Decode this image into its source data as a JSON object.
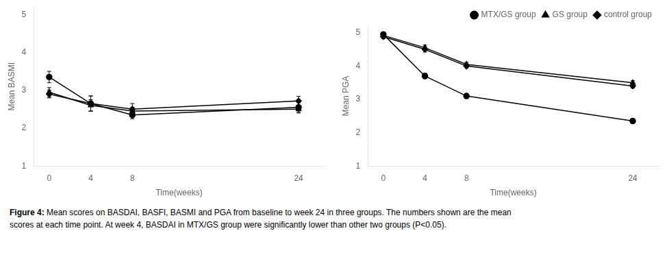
{
  "chart_data": [
    {
      "type": "line",
      "x": [
        0,
        4,
        8,
        24
      ],
      "xlabel": "Time(weeks)",
      "ylabel": "Mean BASMI",
      "xlim": [
        -1.5,
        26.5
      ],
      "xticks": [
        0,
        4,
        8,
        24
      ],
      "ylim": [
        1,
        5.2
      ],
      "yticks": [
        1,
        2,
        3,
        4,
        5
      ],
      "grid": false,
      "series": [
        {
          "name": "MTX/GS group",
          "color": "#000000",
          "marker": "circle",
          "values": [
            3.35,
            2.65,
            2.35,
            2.55
          ],
          "errors": [
            0.15,
            0.2,
            0.1,
            0.12
          ]
        },
        {
          "name": "GS group",
          "color": "#000000",
          "marker": "triangle",
          "values": [
            2.95,
            2.6,
            2.45,
            2.5
          ],
          "errors": [
            0.12,
            0.15,
            0.1,
            0.1
          ]
        },
        {
          "name": "control group",
          "color": "#000000",
          "marker": "diamond",
          "values": [
            2.9,
            2.65,
            2.5,
            2.72
          ],
          "errors": [
            0.1,
            0.2,
            0.15,
            0.12
          ]
        }
      ]
    },
    {
      "type": "line",
      "x": [
        0,
        4,
        8,
        24
      ],
      "xlabel": "Time(weeks)",
      "ylabel": "Mean PGA",
      "xlim": [
        -1.5,
        26.5
      ],
      "xticks": [
        0,
        4,
        8,
        24
      ],
      "ylim": [
        1,
        5.2
      ],
      "yticks": [
        1,
        2,
        3,
        4,
        5
      ],
      "grid": false,
      "legend": "upper right",
      "series": [
        {
          "name": "MTX/GS group",
          "color": "#000000",
          "marker": "circle",
          "values": [
            4.95,
            3.7,
            3.1,
            2.35
          ],
          "errors": [
            0.06,
            0.08,
            0.06,
            0.06
          ]
        },
        {
          "name": "GS group",
          "color": "#000000",
          "marker": "triangle",
          "values": [
            4.92,
            4.55,
            4.05,
            3.5
          ],
          "errors": [
            0.06,
            0.08,
            0.06,
            0.06
          ]
        },
        {
          "name": "control group",
          "color": "#000000",
          "marker": "diamond",
          "values": [
            4.88,
            4.5,
            4.0,
            3.4
          ],
          "errors": [
            0.06,
            0.08,
            0.06,
            0.06
          ]
        }
      ]
    }
  ],
  "caption": [
    "Figure 4: Mean scores on BASDAI, BASFI, BASMI and PGA from baseline to week 24 in three groups. The numbers shown are the mean",
    "scores at each time point. At week 4, BASDAI in MTX/GS group were significantly lower than other two groups (P<0.05)."
  ]
}
